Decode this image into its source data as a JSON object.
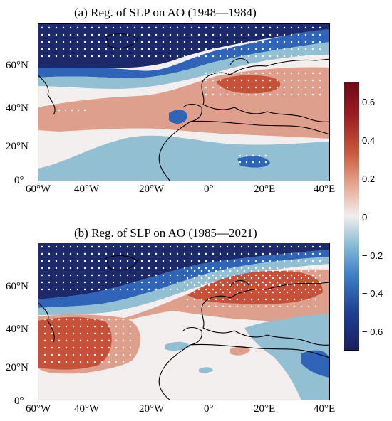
{
  "panels": [
    {
      "title": "(a) Reg. of SLP on AO (1948—1984)",
      "lat_labels": [
        "60°N",
        "40°N",
        "20°N",
        "0°"
      ],
      "lon_labels": [
        "60°W",
        "40°W",
        "20°W",
        "0°",
        "20°E",
        "40°E"
      ]
    },
    {
      "title": "(b) Reg. of SLP on AO (1985—2021)",
      "lat_labels": [
        "60°N",
        "40°N",
        "20°N",
        "0°"
      ],
      "lon_labels": [
        "60°W",
        "40°W",
        "20°W",
        "0°",
        "20°E",
        "40°E"
      ]
    }
  ],
  "colorbar": {
    "ticks": [
      "0.6",
      "0.4",
      "0.2",
      "0",
      "− 0.2",
      "− 0.4",
      "− 0.6"
    ],
    "range": [
      -0.7,
      0.7
    ],
    "colors": [
      "#1a1f5e",
      "#1f4fa8",
      "#3f7ec8",
      "#8ec0d6",
      "#f2eeee",
      "#e4a58e",
      "#c9573c",
      "#9b1b22",
      "#6e0a16"
    ]
  },
  "map_colors": {
    "deep_blue": "#1c2a6b",
    "blue": "#2f64b8",
    "light_blue": "#93bfd2",
    "white": "#f3efef",
    "salmon": "#dea08c",
    "red": "#c65038",
    "dark_red": "#a2272a"
  }
}
